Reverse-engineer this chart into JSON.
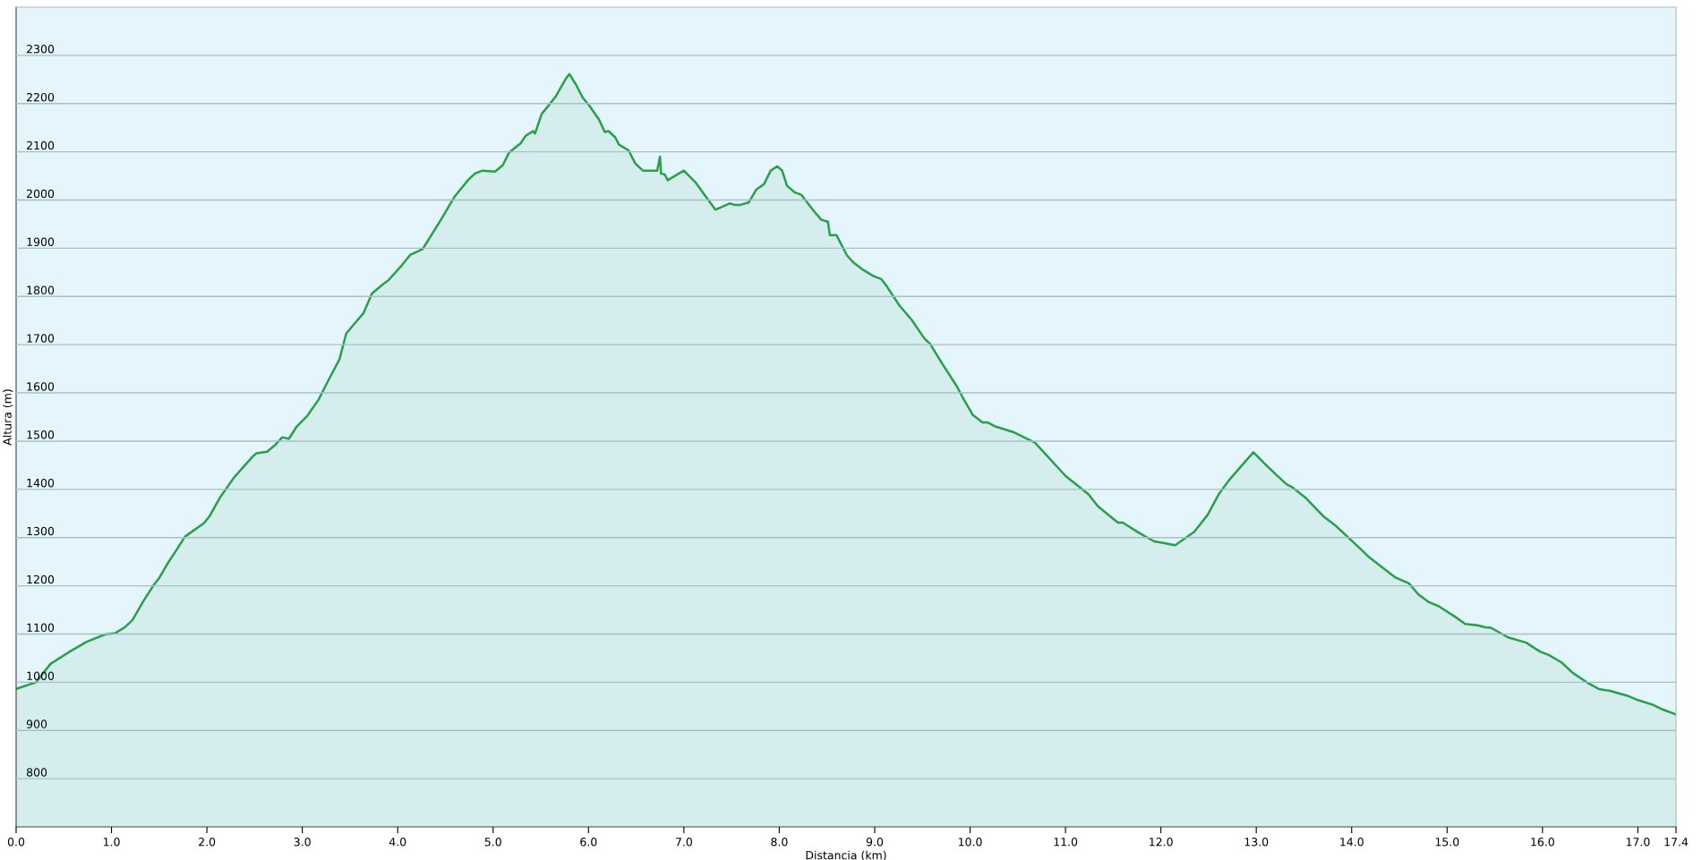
{
  "chart_data": {
    "type": "area",
    "xlabel": "Distancia (km)",
    "ylabel": "Altura (m)",
    "x": [
      0,
      0.21,
      0.36,
      0.55,
      0.74,
      0.93,
      1.04,
      1.14,
      1.22,
      1.33,
      1.44,
      1.5,
      1.59,
      1.69,
      1.77,
      1.97,
      2.03,
      2.14,
      2.29,
      2.48,
      2.52,
      2.63,
      2.71,
      2.79,
      2.86,
      2.94,
      3.05,
      3.17,
      3.26,
      3.39,
      3.46,
      3.54,
      3.64,
      3.73,
      3.85,
      3.9,
      4.04,
      4.13,
      4.26,
      4.45,
      4.53,
      4.6,
      4.74,
      4.81,
      4.89,
      5.02,
      5.1,
      5.17,
      5.29,
      5.34,
      5.42,
      5.44,
      5.51,
      5.59,
      5.66,
      5.77,
      5.8,
      5.87,
      5.94,
      6.0,
      6.11,
      6.17,
      6.21,
      6.28,
      6.32,
      6.42,
      6.49,
      6.57,
      6.72,
      6.75,
      6.76,
      6.8,
      6.83,
      7.0,
      7.12,
      7.23,
      7.33,
      7.4,
      7.48,
      7.53,
      7.59,
      7.68,
      7.76,
      7.84,
      7.91,
      7.98,
      8.03,
      8.08,
      8.16,
      8.23,
      8.35,
      8.44,
      8.51,
      8.53,
      8.6,
      8.71,
      8.78,
      8.88,
      8.99,
      9.07,
      9.12,
      9.26,
      9.39,
      9.52,
      9.58,
      9.71,
      9.86,
      9.93,
      10.03,
      10.13,
      10.18,
      10.27,
      10.45,
      10.68,
      11.0,
      11.24,
      11.34,
      11.42,
      11.55,
      11.6,
      11.77,
      11.93,
      11.99,
      12.15,
      12.35,
      12.49,
      12.61,
      12.71,
      12.85,
      12.97,
      13.09,
      13.21,
      13.32,
      13.38,
      13.52,
      13.71,
      13.83,
      14.03,
      14.19,
      14.46,
      14.6,
      14.7,
      14.81,
      14.91,
      15.09,
      15.19,
      15.32,
      15.4,
      15.46,
      15.64,
      15.83,
      15.97,
      16.07,
      16.2,
      16.32,
      16.48,
      16.59,
      16.71,
      16.89,
      17.0,
      17.16,
      17.24,
      17.4
    ],
    "series": [
      {
        "color": "#27a04a",
        "values": [
          986,
          1000,
          1038,
          1062,
          1084,
          1099,
          1102,
          1114,
          1129,
          1167,
          1201,
          1216,
          1247,
          1277,
          1302,
          1330,
          1345,
          1384,
          1426,
          1468,
          1475,
          1478,
          1491,
          1508,
          1505,
          1530,
          1552,
          1586,
          1621,
          1670,
          1723,
          1742,
          1765,
          1806,
          1826,
          1833,
          1864,
          1886,
          1898,
          1958,
          1985,
          2008,
          2042,
          2055,
          2061,
          2059,
          2072,
          2099,
          2118,
          2133,
          2143,
          2138,
          2179,
          2198,
          2216,
          2254,
          2261,
          2239,
          2212,
          2198,
          2167,
          2141,
          2143,
          2130,
          2115,
          2103,
          2076,
          2061,
          2061,
          2090,
          2055,
          2053,
          2041,
          2061,
          2037,
          2007,
          1980,
          1986,
          1993,
          1990,
          1990,
          1995,
          2022,
          2033,
          2061,
          2070,
          2061,
          2030,
          2016,
          2011,
          1980,
          1959,
          1955,
          1927,
          1927,
          1885,
          1870,
          1855,
          1842,
          1836,
          1823,
          1781,
          1751,
          1713,
          1702,
          1660,
          1614,
          1588,
          1554,
          1539,
          1539,
          1530,
          1519,
          1497,
          1428,
          1390,
          1365,
          1352,
          1331,
          1331,
          1310,
          1292,
          1290,
          1284,
          1312,
          1347,
          1391,
          1418,
          1450,
          1477,
          1453,
          1430,
          1410,
          1404,
          1382,
          1343,
          1325,
          1288,
          1258,
          1217,
          1205,
          1182,
          1166,
          1158,
          1135,
          1121,
          1118,
          1114,
          1113,
          1093,
          1082,
          1064,
          1056,
          1041,
          1019,
          998,
          986,
          982,
          972,
          963,
          953,
          945,
          933
        ]
      }
    ],
    "xlim": [
      0,
      17.4
    ],
    "ylim": [
      700,
      2400
    ],
    "xticks": [
      {
        "value": 0,
        "label": "0.0"
      },
      {
        "value": 1,
        "label": "1.0"
      },
      {
        "value": 2,
        "label": "2.0"
      },
      {
        "value": 3,
        "label": "3.0"
      },
      {
        "value": 4,
        "label": "4.0"
      },
      {
        "value": 5,
        "label": "5.0"
      },
      {
        "value": 6,
        "label": "6.0"
      },
      {
        "value": 7,
        "label": "7.0"
      },
      {
        "value": 8,
        "label": "8.0"
      },
      {
        "value": 9,
        "label": "9.0"
      },
      {
        "value": 10,
        "label": "10.0"
      },
      {
        "value": 11,
        "label": "11.0"
      },
      {
        "value": 12,
        "label": "12.0"
      },
      {
        "value": 13,
        "label": "13.0"
      },
      {
        "value": 14,
        "label": "14.0"
      },
      {
        "value": 15,
        "label": "15.0"
      },
      {
        "value": 16,
        "label": "16.0"
      },
      {
        "value": 17,
        "label": "17.0"
      },
      17.4
    ],
    "yticks": [
      800,
      900,
      1000,
      1100,
      1200,
      1300,
      1400,
      1500,
      1600,
      1700,
      1800,
      1900,
      2000,
      2100,
      2200,
      2300
    ],
    "grid": "y"
  }
}
